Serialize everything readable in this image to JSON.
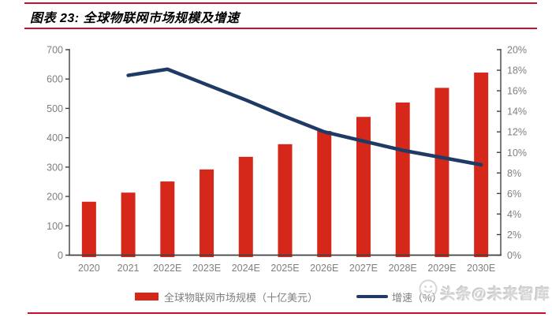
{
  "header": {
    "title": "图表 23: 全球物联网市场规模及增速"
  },
  "chart_data": {
    "type": "bar",
    "combo": "bar+line",
    "title": "全球物联网市场规模及增速",
    "categories": [
      "2020",
      "2021",
      "2022E",
      "2023E",
      "2024E",
      "2025E",
      "2026E",
      "2027E",
      "2028E",
      "2029E",
      "2030E"
    ],
    "series": [
      {
        "name": "全球物联网市场规模（十亿美元）",
        "type": "bar",
        "axis": "left",
        "color": "#D5281B",
        "values": [
          182,
          213,
          251,
          292,
          335,
          378,
          423,
          471,
          520,
          570,
          622
        ]
      },
      {
        "name": "增速（%）",
        "type": "line",
        "axis": "right",
        "color": "#1F3A64",
        "values": [
          null,
          17.5,
          18.1,
          16.6,
          15.1,
          13.5,
          12.0,
          11.1,
          10.2,
          9.5,
          8.8
        ]
      }
    ],
    "left_axis": {
      "min": 0,
      "max": 700,
      "step": 100,
      "tick_labels": [
        "0",
        "100",
        "200",
        "300",
        "400",
        "500",
        "600",
        "700"
      ]
    },
    "right_axis": {
      "min": 0,
      "max": 20,
      "step": 2,
      "tick_labels": [
        "0%",
        "2%",
        "4%",
        "6%",
        "8%",
        "10%",
        "12%",
        "14%",
        "16%",
        "18%",
        "20%"
      ]
    },
    "grid": false,
    "legend_position": "bottom"
  },
  "legend": {
    "bar_label": "全球物联网市场规模（十亿美元）",
    "line_label": "增速（%）"
  },
  "watermark": {
    "text": "头条@未来智库",
    "icon": "smiley-face"
  },
  "colors": {
    "bar": "#D5281B",
    "line": "#1F3A64",
    "rule": "#C8102E",
    "axis_line": "#404040",
    "axis_text": "#7F7F7F"
  }
}
